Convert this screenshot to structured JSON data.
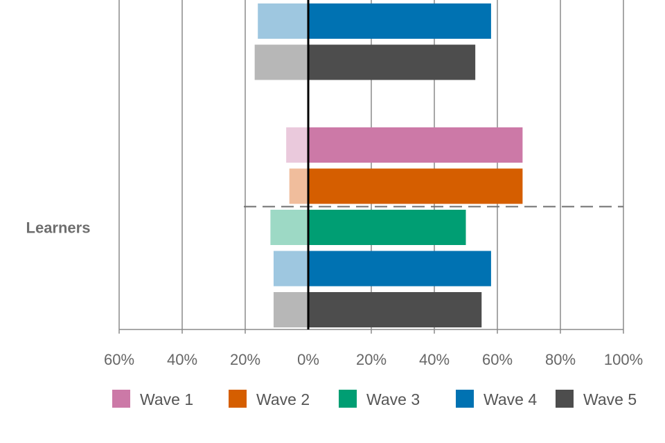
{
  "chart_data": {
    "type": "bar",
    "orientation": "horizontal-diverging",
    "title": "",
    "xlabel": "",
    "ylabel": "",
    "xlim": [
      -60,
      100
    ],
    "ticks": [
      -60,
      -40,
      -20,
      0,
      20,
      40,
      60,
      80,
      100
    ],
    "tick_labels": [
      "60%",
      "40%",
      "20%",
      "0%",
      "20%",
      "40%",
      "60%",
      "80%",
      "100%"
    ],
    "grid": true,
    "legend_position": "bottom",
    "groups": [
      {
        "label": "",
        "bars": [
          {
            "series": "Wave 4",
            "negative": 16,
            "positive": 58
          },
          {
            "series": "Wave 5",
            "negative": 17,
            "positive": 53
          }
        ]
      },
      {
        "label": "Learners",
        "bars": [
          {
            "series": "Wave 1",
            "negative": 7,
            "positive": 68
          },
          {
            "series": "Wave 2",
            "negative": 6,
            "positive": 68
          },
          {
            "series": "Wave 3",
            "negative": 12,
            "positive": 50
          },
          {
            "series": "Wave 4",
            "negative": 11,
            "positive": 58
          },
          {
            "series": "Wave 5",
            "negative": 11,
            "positive": 55
          }
        ]
      }
    ],
    "series": [
      {
        "name": "Wave 1",
        "color": "#cc79a7",
        "light_color": "#eac9dc"
      },
      {
        "name": "Wave 2",
        "color": "#d55e00",
        "light_color": "#f0bd9c"
      },
      {
        "name": "Wave 3",
        "color": "#009e73",
        "light_color": "#9dd9c5"
      },
      {
        "name": "Wave 4",
        "color": "#0072b2",
        "light_color": "#9ec7e0"
      },
      {
        "name": "Wave 5",
        "color": "#4d4d4d",
        "light_color": "#b7b7b7"
      }
    ]
  }
}
